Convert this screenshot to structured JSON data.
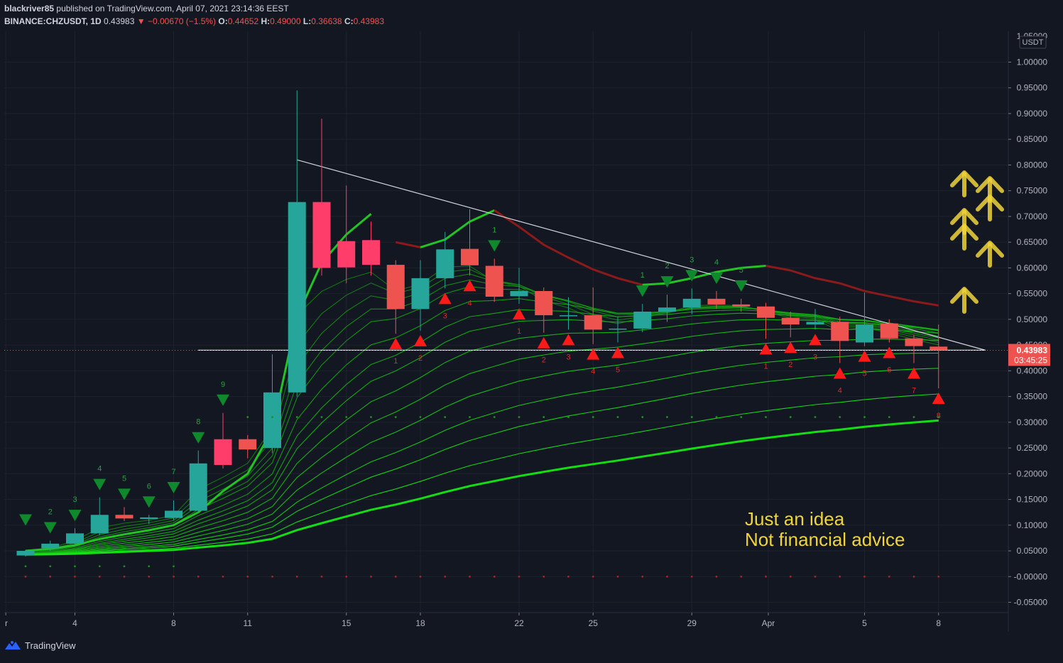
{
  "header": {
    "publisher": "blackriver85",
    "published_text": "published on TradingView.com, April 07, 2021 23:14:36 EEST",
    "symbol": "BINANCE:CHZUSDT, 1D",
    "last": "0.43983",
    "change_arrow": "▼",
    "change": "−0.00670 (−1.5%)",
    "o_label": "O:",
    "o": "0.44652",
    "h_label": "H:",
    "h": "0.49000",
    "l_label": "L:",
    "l": "0.36638",
    "c_label": "C:",
    "c": "0.43983"
  },
  "annotation": {
    "line1": "Just an idea",
    "line2": "Not financial advice"
  },
  "footer": {
    "brand": "TradingView",
    "logo_icon": "tradingview-logo-icon"
  },
  "price_axis": {
    "currency": "USDT",
    "top_label": "1.05000",
    "ticks": [
      "1.00000",
      "0.95000",
      "0.90000",
      "0.85000",
      "0.80000",
      "0.75000",
      "0.70000",
      "0.65000",
      "0.60000",
      "0.55000",
      "0.50000",
      "0.45000",
      "0.40000",
      "0.35000",
      "0.30000",
      "0.25000",
      "0.20000",
      "0.15000",
      "0.10000",
      "0.05000",
      "-0.00000",
      "-0.05000"
    ],
    "last_price_label": "0.43983",
    "countdown_label": "03:45:25"
  },
  "time_axis": {
    "ticks": [
      "r",
      "4",
      "8",
      "11",
      "15",
      "18",
      "22",
      "25",
      "29",
      "Apr",
      "5",
      "8"
    ]
  },
  "colors": {
    "background": "#131722",
    "up": "#26a69a",
    "down": "#ef5350",
    "strong_down": "#ff3d6b",
    "green_line": "#22c322",
    "red_line": "#8b1a1a",
    "arrow_green": "#0e8a2c",
    "arrow_red": "#ff1a1a",
    "idea_yellow": "#f0d43a"
  },
  "chart_data": {
    "type": "candlestick",
    "symbol": "BINANCE:CHZUSDT",
    "interval": "1D",
    "yrange": [
      -0.07,
      1.06
    ],
    "scale": "linear",
    "grid": true,
    "candles": [
      {
        "o": 0.041,
        "h": 0.052,
        "l": 0.039,
        "c": 0.05,
        "seq_above": ""
      },
      {
        "o": 0.055,
        "h": 0.07,
        "l": 0.05,
        "c": 0.064,
        "seq_above": "2"
      },
      {
        "o": 0.064,
        "h": 0.094,
        "l": 0.06,
        "c": 0.084,
        "seq_above": "3"
      },
      {
        "o": 0.084,
        "h": 0.154,
        "l": 0.08,
        "c": 0.12,
        "seq_above": "4"
      },
      {
        "o": 0.12,
        "h": 0.135,
        "l": 0.108,
        "c": 0.113,
        "seq_above": "5"
      },
      {
        "o": 0.112,
        "h": 0.12,
        "l": 0.102,
        "c": 0.115,
        "seq_above": "6"
      },
      {
        "o": 0.114,
        "h": 0.148,
        "l": 0.11,
        "c": 0.128,
        "seq_above": "7"
      },
      {
        "o": 0.128,
        "h": 0.245,
        "l": 0.124,
        "c": 0.22,
        "seq_above": "8"
      },
      {
        "o": 0.267,
        "h": 0.318,
        "l": 0.21,
        "c": 0.217,
        "seq_above": "9",
        "strong": true
      },
      {
        "o": 0.267,
        "h": 0.275,
        "l": 0.23,
        "c": 0.247,
        "seq_above": ""
      },
      {
        "o": 0.25,
        "h": 0.432,
        "l": 0.24,
        "c": 0.358,
        "seq_above": ""
      },
      {
        "o": 0.358,
        "h": 0.945,
        "l": 0.35,
        "c": 0.728,
        "seq_above": ""
      },
      {
        "o": 0.728,
        "h": 0.89,
        "l": 0.585,
        "c": 0.6,
        "seq_above": "",
        "strong": true
      },
      {
        "o": 0.652,
        "h": 0.76,
        "l": 0.57,
        "c": 0.601,
        "seq_above": "",
        "strong": true
      },
      {
        "o": 0.654,
        "h": 0.69,
        "l": 0.585,
        "c": 0.606,
        "seq_above": "",
        "strong": true
      },
      {
        "o": 0.606,
        "h": 0.615,
        "l": 0.472,
        "c": 0.52,
        "seq_below": "1"
      },
      {
        "o": 0.52,
        "h": 0.615,
        "l": 0.478,
        "c": 0.58,
        "seq_below": "2"
      },
      {
        "o": 0.58,
        "h": 0.67,
        "l": 0.56,
        "c": 0.636,
        "seq_below": "3"
      },
      {
        "o": 0.637,
        "h": 0.714,
        "l": 0.585,
        "c": 0.605,
        "seq_below": "4"
      },
      {
        "o": 0.604,
        "h": 0.618,
        "l": 0.534,
        "c": 0.544,
        "seq_above": "1"
      },
      {
        "o": 0.545,
        "h": 0.6,
        "l": 0.53,
        "c": 0.555,
        "seq_below": "1"
      },
      {
        "o": 0.555,
        "h": 0.562,
        "l": 0.474,
        "c": 0.508,
        "seq_below": "2"
      },
      {
        "o": 0.508,
        "h": 0.543,
        "l": 0.48,
        "c": 0.508,
        "seq_below": "3"
      },
      {
        "o": 0.508,
        "h": 0.562,
        "l": 0.452,
        "c": 0.48,
        "seq_below": "4"
      },
      {
        "o": 0.48,
        "h": 0.505,
        "l": 0.455,
        "c": 0.482,
        "seq_below": "5"
      },
      {
        "o": 0.482,
        "h": 0.53,
        "l": 0.475,
        "c": 0.515,
        "seq_above": "1"
      },
      {
        "o": 0.515,
        "h": 0.548,
        "l": 0.495,
        "c": 0.523,
        "seq_above": "2"
      },
      {
        "o": 0.523,
        "h": 0.56,
        "l": 0.51,
        "c": 0.54,
        "seq_above": "3"
      },
      {
        "o": 0.54,
        "h": 0.555,
        "l": 0.52,
        "c": 0.529,
        "seq_above": "4"
      },
      {
        "o": 0.529,
        "h": 0.54,
        "l": 0.515,
        "c": 0.525,
        "seq_above": "5"
      },
      {
        "o": 0.525,
        "h": 0.532,
        "l": 0.462,
        "c": 0.503,
        "seq_below": "1"
      },
      {
        "o": 0.503,
        "h": 0.515,
        "l": 0.465,
        "c": 0.49,
        "seq_below": "2"
      },
      {
        "o": 0.49,
        "h": 0.52,
        "l": 0.48,
        "c": 0.495,
        "seq_below": "3"
      },
      {
        "o": 0.495,
        "h": 0.505,
        "l": 0.415,
        "c": 0.458,
        "seq_below": "4"
      },
      {
        "o": 0.455,
        "h": 0.552,
        "l": 0.448,
        "c": 0.49,
        "seq_below": "5"
      },
      {
        "o": 0.492,
        "h": 0.5,
        "l": 0.455,
        "c": 0.463,
        "seq_below": "6"
      },
      {
        "o": 0.463,
        "h": 0.47,
        "l": 0.415,
        "c": 0.448,
        "seq_below": "7"
      },
      {
        "o": 0.447,
        "h": 0.49,
        "l": 0.366,
        "c": 0.44,
        "seq_below": "8"
      }
    ],
    "fast_ma_segments": [
      {
        "color": "green",
        "from": 0,
        "values": [
          0.05,
          0.054,
          0.061,
          0.073,
          0.082,
          0.09,
          0.1,
          0.125,
          0.166,
          0.2,
          0.285,
          0.505,
          0.61,
          0.665,
          0.705
        ]
      },
      {
        "color": "red",
        "from": 15,
        "values": [
          0.65,
          0.64
        ]
      },
      {
        "color": "green",
        "from": 16,
        "values": [
          0.64,
          0.655,
          0.69,
          0.712
        ]
      },
      {
        "color": "red",
        "from": 19,
        "values": [
          0.712,
          0.68,
          0.645,
          0.62,
          0.597,
          0.58,
          0.567
        ]
      },
      {
        "color": "green",
        "from": 25,
        "values": [
          0.567,
          0.57,
          0.58,
          0.592,
          0.6,
          0.604
        ]
      },
      {
        "color": "red",
        "from": 30,
        "values": [
          0.604,
          0.595,
          0.58,
          0.57,
          0.555,
          0.545,
          0.535,
          0.527
        ]
      }
    ],
    "ribbon_periods": [
      "5",
      "8",
      "13",
      "21",
      "34",
      "55",
      "89",
      "144",
      "233",
      "377"
    ],
    "trendline": {
      "x1": 11,
      "y1": 0.81,
      "x2": 38.9,
      "y2": 0.44
    },
    "support_line": {
      "x1": 7,
      "x2": 38.9,
      "y": 0.44
    },
    "annotation_arrows": 6
  }
}
